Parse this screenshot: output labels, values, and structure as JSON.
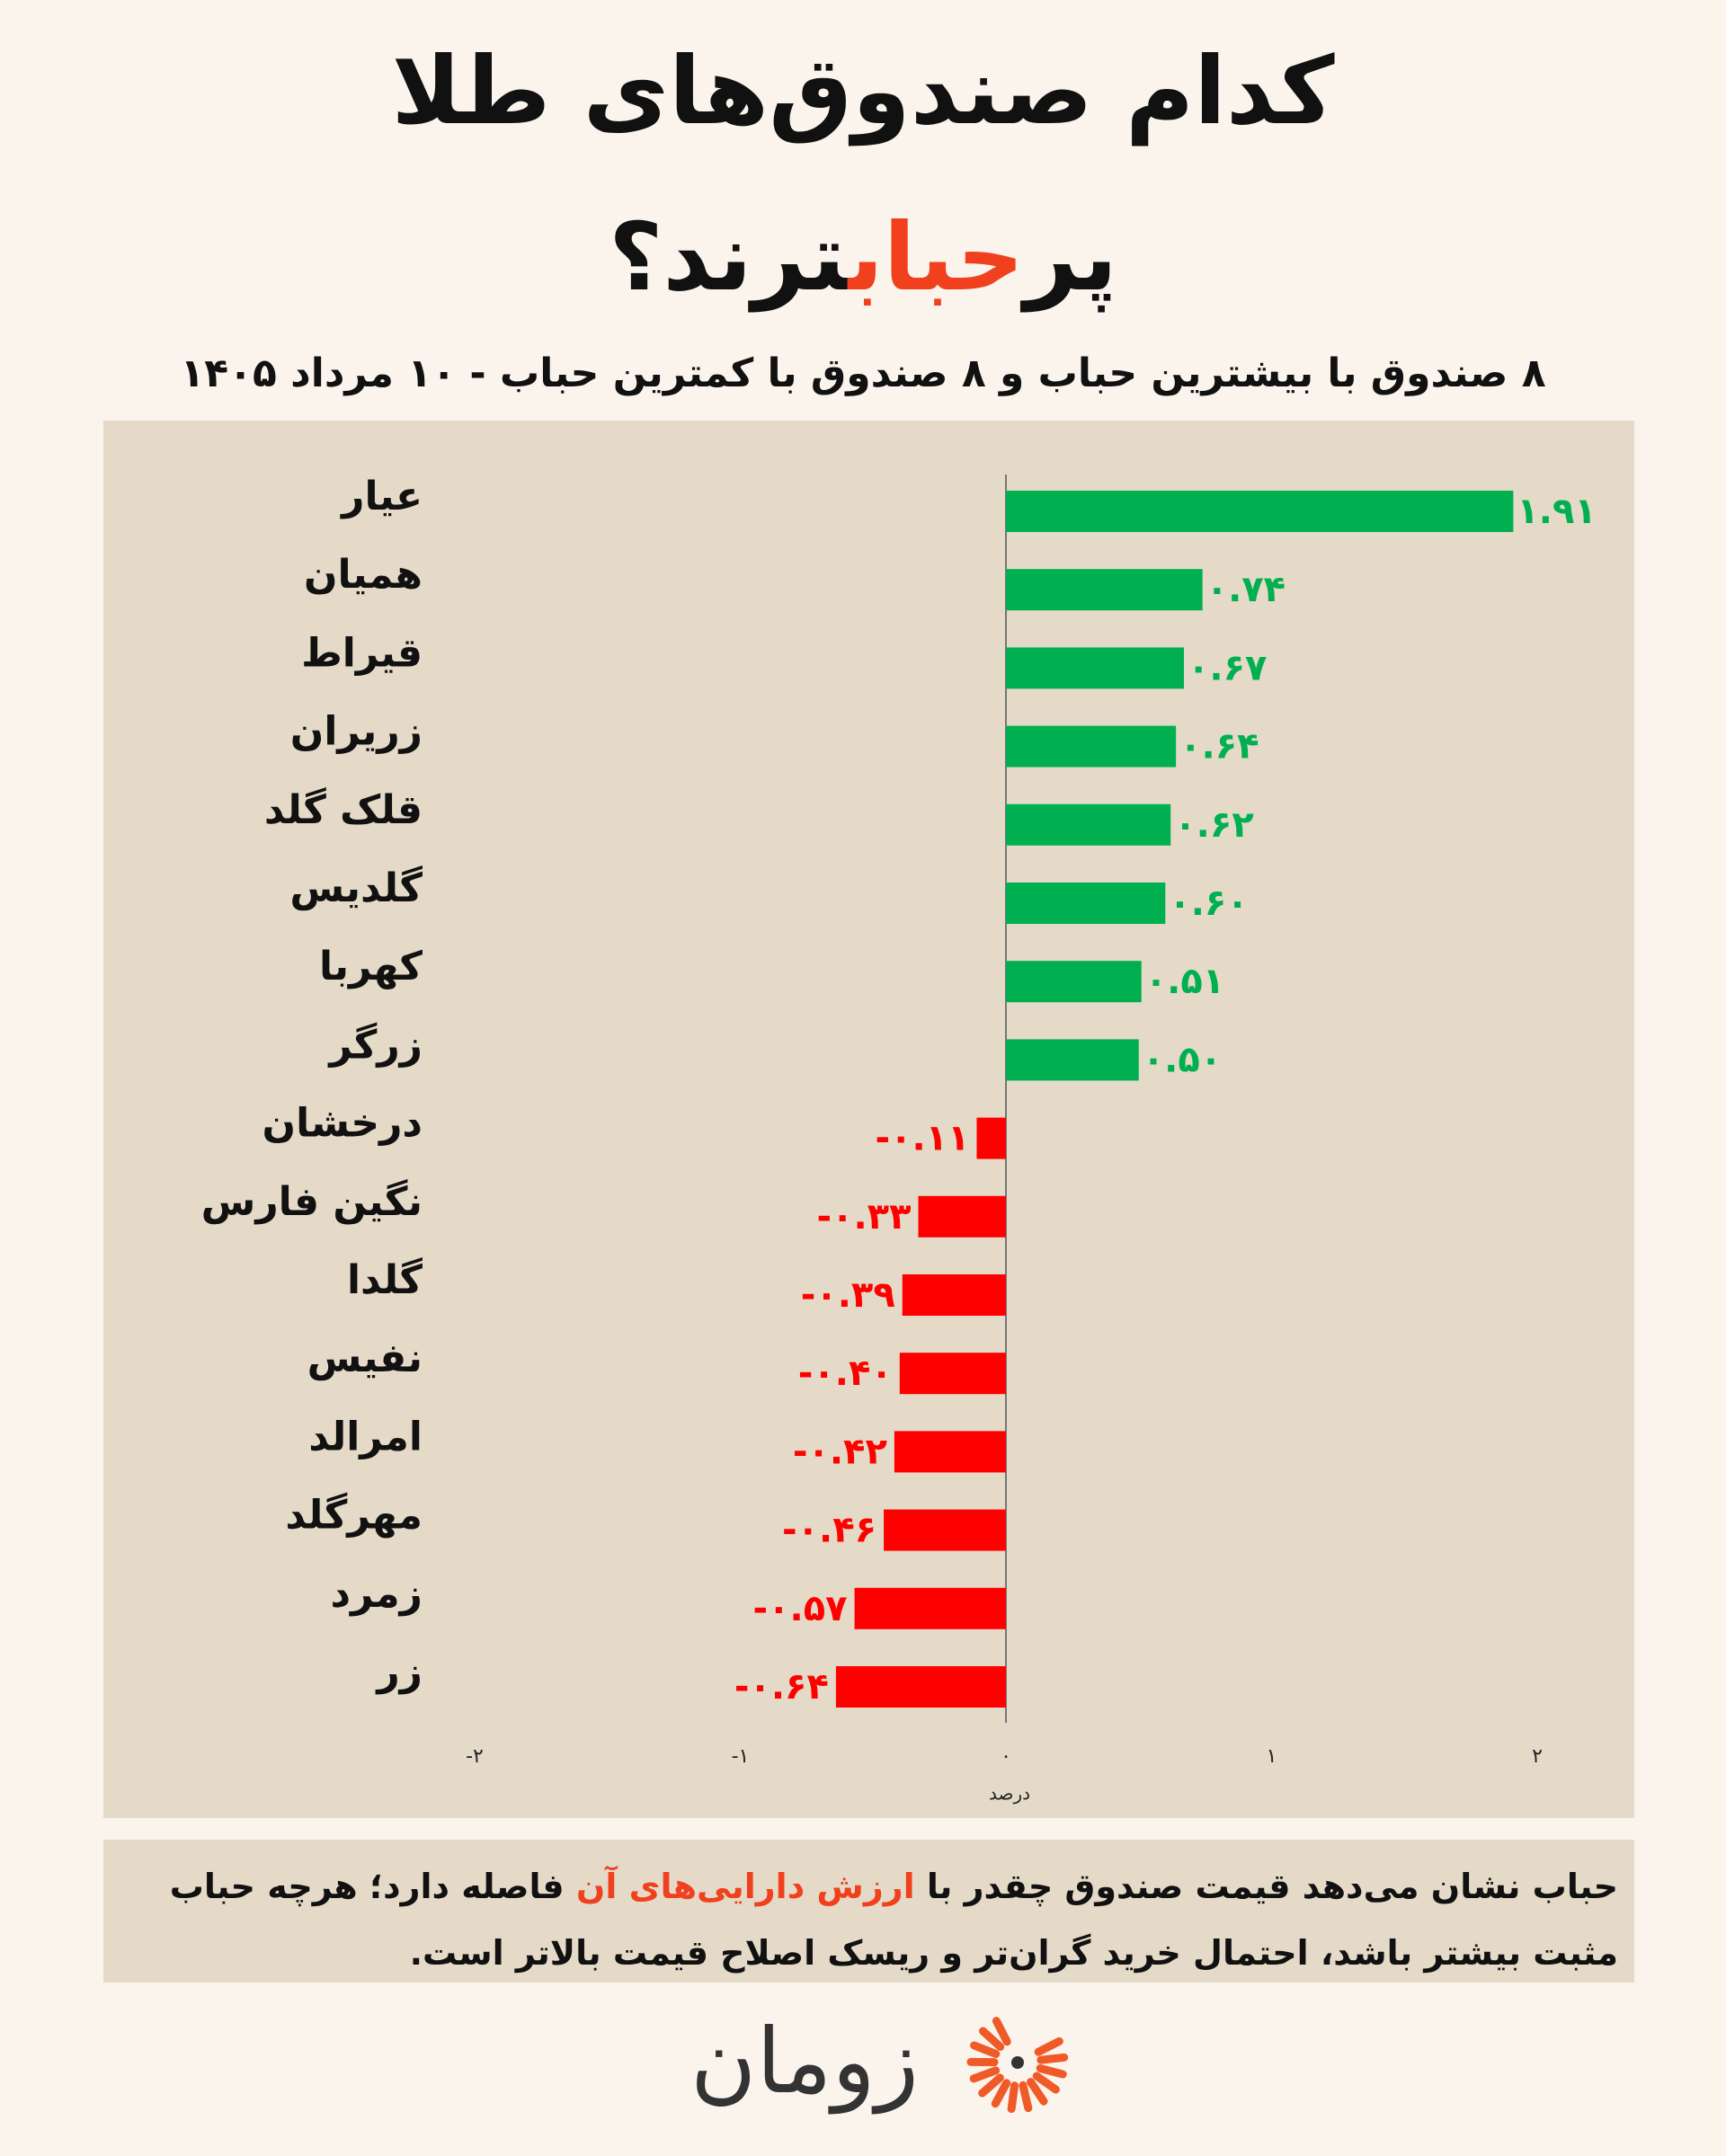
{
  "chart_data": {
    "type": "barh",
    "title": [
      "کدام صندوق‌های طلا",
      "پر",
      "حباب",
      "ترند؟"
    ],
    "subtitle": "۸ صندوق با بیشترین حباب و ۸ صندوق با کمترین حباب - ۱۰ مرداد ۱۴۰۵",
    "categories": [
      "عیار",
      "همیان",
      "قیراط",
      "زر‌یران",
      "قلک گلد",
      "گلدیس",
      "کهربا",
      "زرگر",
      "درخشان",
      "نگین فارس",
      "گلدا",
      "نفیس",
      "امرالد",
      "مهرگلد",
      "زمرد",
      "زر"
    ],
    "values": [
      1.91,
      0.74,
      0.67,
      0.64,
      0.62,
      0.6,
      0.51,
      0.5,
      -0.11,
      -0.33,
      -0.39,
      -0.4,
      -0.42,
      -0.46,
      -0.57,
      -0.64
    ],
    "value_labels": [
      "۱.۹۱",
      "۰.۷۴",
      "۰.۶۷",
      "۰.۶۴",
      "۰.۶۲",
      "۰.۶۰",
      "۰.۵۱",
      "۰.۵۰",
      "-۰.۱۱",
      "-۰.۳۳",
      "-۰.۳۹",
      "-۰.۴۰",
      "-۰.۴۲",
      "-۰.۴۶",
      "-۰.۵۷",
      "-۰.۶۴"
    ],
    "positive_color": "#00b050",
    "negative_color": "#ff0000",
    "xlim": [
      -2,
      2
    ],
    "xticks": [
      {
        "value": -2,
        "label": "-۲"
      },
      {
        "value": -1,
        "label": "-۱"
      },
      {
        "value": 0,
        "label": "۰"
      },
      {
        "value": 1,
        "label": "۱"
      },
      {
        "value": 2,
        "label": "۲"
      }
    ],
    "xlabel": "درصد"
  },
  "note": [
    "حباب نشان می‌دهد قیمت صندوق چقدر با",
    "ارزش دارایی‌های آن",
    "فاصله دارد؛ هرچه حباب مثبت بیشتر باشد، احتمال خرید گران‌تر و ریسک اصلاح قیمت بالاتر است."
  ],
  "logo": "زومان"
}
